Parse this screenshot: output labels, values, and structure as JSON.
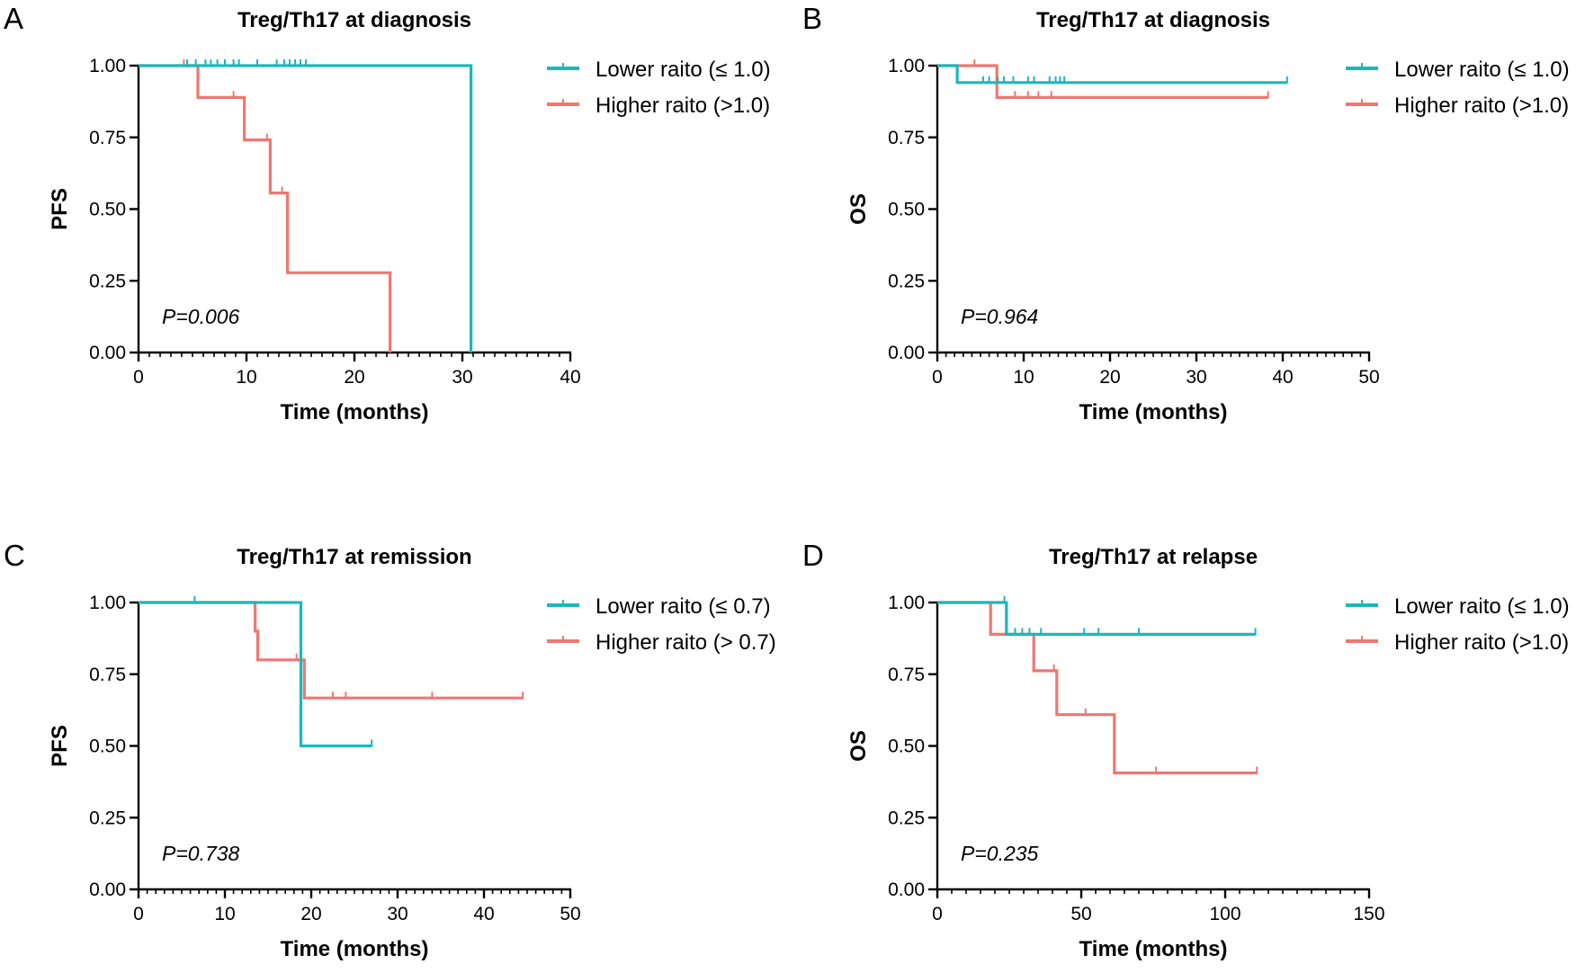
{
  "colors": {
    "lower": "#1ab8bd",
    "higher": "#ef7772",
    "axis": "#000000"
  },
  "chart_data": [
    {
      "type": "line",
      "panel": "A",
      "title": "Treg/Th17 at diagnosis",
      "xlabel": "Time (months)",
      "ylabel": "PFS",
      "xlim": [
        0,
        40
      ],
      "ylim": [
        0,
        1
      ],
      "x_ticks": [
        0,
        10,
        20,
        30,
        40
      ],
      "x_tick_labels": [
        "0",
        "10",
        "20",
        "30",
        "40"
      ],
      "x_minor_step": 1,
      "y_ticks": [
        0,
        0.25,
        0.5,
        0.75,
        1
      ],
      "y_tick_labels": [
        "0.00",
        "0.25",
        "0.50",
        "0.75",
        "1.00"
      ],
      "p_value": "P=0.006",
      "legend_position": "top-right",
      "series": [
        {
          "name": "Lower raito (≤ 1.0)",
          "color_key": "lower",
          "x": [
            0,
            30.8,
            30.8
          ],
          "y": [
            1,
            1,
            0
          ],
          "censor_x": [
            4.5,
            5.3,
            6.2,
            6.7,
            7.3,
            8.0,
            8.8,
            9.3,
            11.0,
            12.8,
            13.5,
            14.0,
            14.5,
            15.0,
            15.5
          ]
        },
        {
          "name": "Higher raito (>1.0)",
          "color_key": "higher",
          "x": [
            0,
            5.5,
            5.5,
            9.8,
            9.8,
            12.2,
            12.2,
            13.8,
            13.8,
            23.3,
            23.3
          ],
          "y": [
            1,
            1,
            0.889,
            0.889,
            0.741,
            0.741,
            0.556,
            0.556,
            0.278,
            0.278,
            0
          ],
          "censor_x": [
            4.2,
            8.8,
            11.9,
            13.3
          ]
        }
      ]
    },
    {
      "type": "line",
      "panel": "B",
      "title": "Treg/Th17 at diagnosis",
      "xlabel": "Time (months)",
      "ylabel": "OS",
      "xlim": [
        0,
        50
      ],
      "ylim": [
        0,
        1
      ],
      "x_ticks": [
        0,
        10,
        20,
        30,
        40,
        50
      ],
      "x_tick_labels": [
        "0",
        "10",
        "20",
        "30",
        "40",
        "50"
      ],
      "x_minor_step": 1,
      "y_ticks": [
        0,
        0.25,
        0.5,
        0.75,
        1
      ],
      "y_tick_labels": [
        "0.00",
        "0.25",
        "0.50",
        "0.75",
        "1.00"
      ],
      "p_value": "P=0.964",
      "legend_position": "top-right",
      "series": [
        {
          "name": "Lower raito (≤ 1.0)",
          "color_key": "lower",
          "x": [
            0,
            2.3,
            2.3,
            40.5
          ],
          "y": [
            1,
            1,
            0.941,
            0.941
          ],
          "censor_x": [
            5.3,
            6.0,
            7.0,
            7.7,
            8.8,
            10.5,
            11.2,
            13.0,
            13.7,
            14.2,
            14.7,
            40.5
          ]
        },
        {
          "name": "Higher raito (>1.0)",
          "color_key": "higher",
          "x": [
            0,
            6.9,
            6.9,
            38.3
          ],
          "y": [
            1,
            1,
            0.889,
            0.889
          ],
          "censor_x": [
            4.3,
            9.0,
            10.5,
            11.7,
            13.2,
            38.3
          ]
        }
      ]
    },
    {
      "type": "line",
      "panel": "C",
      "title": "Treg/Th17 at remission",
      "xlabel": "Time (months)",
      "ylabel": "PFS",
      "xlim": [
        0,
        50
      ],
      "ylim": [
        0,
        1
      ],
      "x_ticks": [
        0,
        10,
        20,
        30,
        40,
        50
      ],
      "x_tick_labels": [
        "0",
        "10",
        "20",
        "30",
        "40",
        "50"
      ],
      "x_minor_step": 1,
      "y_ticks": [
        0,
        0.25,
        0.5,
        0.75,
        1
      ],
      "y_tick_labels": [
        "0.00",
        "0.25",
        "0.50",
        "0.75",
        "1.00"
      ],
      "p_value": "P=0.738",
      "legend_position": "top-right",
      "series": [
        {
          "name": "Lower raito (≤ 0.7)",
          "color_key": "lower",
          "x": [
            0,
            18.8,
            18.8,
            27.0
          ],
          "y": [
            1,
            1,
            0.5,
            0.5
          ],
          "censor_x": [
            6.5,
            27.0
          ]
        },
        {
          "name": "Higher raito (> 0.7)",
          "color_key": "higher",
          "x": [
            0,
            13.5,
            13.5,
            13.8,
            13.8,
            19.2,
            19.2,
            44.5
          ],
          "y": [
            1,
            1,
            0.9,
            0.9,
            0.8,
            0.8,
            0.667,
            0.667
          ],
          "censor_x": [
            18.3,
            22.5,
            24.0,
            34.0,
            44.5
          ]
        }
      ]
    },
    {
      "type": "line",
      "panel": "D",
      "title": "Treg/Th17 at relapse",
      "xlabel": "Time (months)",
      "ylabel": "OS",
      "xlim": [
        0,
        150
      ],
      "ylim": [
        0,
        1
      ],
      "x_ticks": [
        0,
        50,
        100,
        150
      ],
      "x_tick_labels": [
        "0",
        "50",
        "100",
        "150"
      ],
      "x_minor_step": 5,
      "y_ticks": [
        0,
        0.25,
        0.5,
        0.75,
        1
      ],
      "y_tick_labels": [
        "0.00",
        "0.25",
        "0.50",
        "0.75",
        "1.00"
      ],
      "p_value": "P=0.235",
      "legend_position": "top-right",
      "series": [
        {
          "name": "Lower raito (≤ 1.0)",
          "color_key": "lower",
          "x": [
            0,
            24,
            24,
            110.5
          ],
          "y": [
            1,
            1,
            0.889,
            0.889
          ],
          "censor_x": [
            23.3,
            27,
            29.5,
            32,
            36,
            51,
            56,
            70,
            110.5
          ]
        },
        {
          "name": "Higher raito (>1.0)",
          "color_key": "higher",
          "x": [
            0,
            18.5,
            18.5,
            33.5,
            33.5,
            41.5,
            41.5,
            61.5,
            61.5,
            111
          ],
          "y": [
            1,
            1,
            0.889,
            0.889,
            0.762,
            0.762,
            0.609,
            0.609,
            0.406,
            0.406
          ],
          "censor_x": [
            40.5,
            51.5,
            76,
            111
          ]
        }
      ]
    }
  ]
}
